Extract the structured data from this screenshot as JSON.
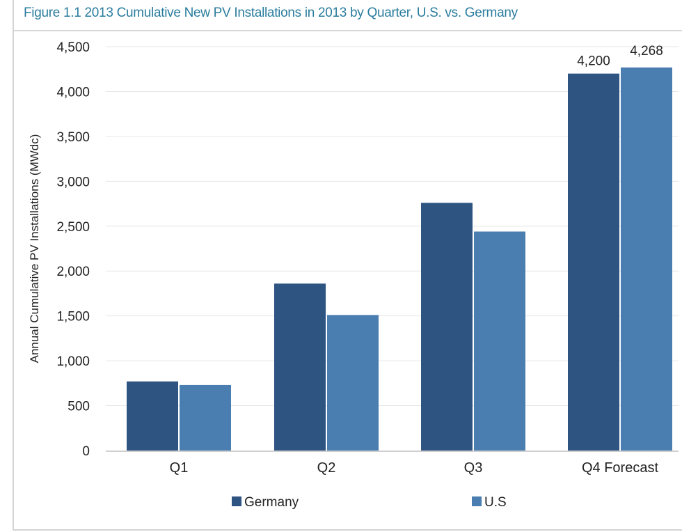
{
  "caption": "Figure 1.1  2013 Cumulative New PV Installations in 2013 by Quarter, U.S. vs. Germany",
  "chart_data": {
    "type": "bar",
    "title": "Figure 1.1  2013 Cumulative New PV Installations in 2013 by Quarter, U.S. vs. Germany",
    "xlabel": "",
    "ylabel": "Annual Cumulative PV Installations (MWdc)",
    "categories": [
      "Q1",
      "Q2",
      "Q3",
      "Q4 Forecast"
    ],
    "ylim": [
      0,
      4500
    ],
    "yticks": [
      0,
      500,
      1000,
      1500,
      2000,
      2500,
      3000,
      3500,
      4000,
      4500
    ],
    "ytick_labels": [
      "0",
      "500",
      "1,000",
      "1,500",
      "2,000",
      "2,500",
      "3,000",
      "3,500",
      "4,000",
      "4,500"
    ],
    "grid": true,
    "legend_position": "bottom",
    "series": [
      {
        "name": "Germany",
        "color": "#2e5482",
        "values": [
          770,
          1860,
          2760,
          4200
        ],
        "data_labels": [
          null,
          null,
          null,
          "4,200"
        ]
      },
      {
        "name": "U.S",
        "color": "#4a7db0",
        "values": [
          730,
          1510,
          2440,
          4268
        ],
        "data_labels": [
          null,
          null,
          null,
          "4,268"
        ]
      }
    ]
  }
}
